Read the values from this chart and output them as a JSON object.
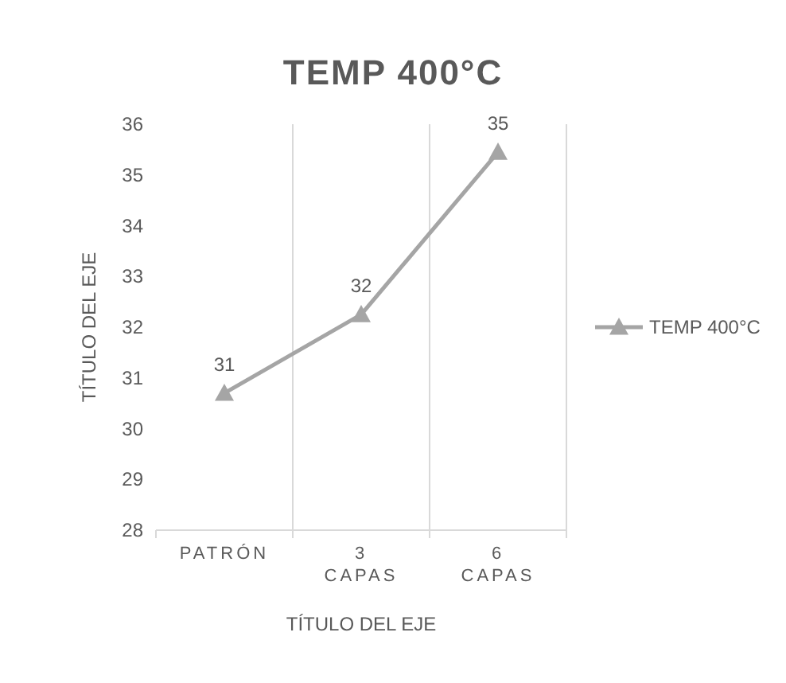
{
  "chart_data": {
    "type": "line",
    "title": "TEMP 400°C",
    "xlabel": "TÍTULO DEL EJE",
    "ylabel": "TÍTULO DEL EJE",
    "categories": [
      "PATRÓN",
      "3 CAPAS",
      "6 CAPAS"
    ],
    "series": [
      {
        "name": "TEMP 400°C",
        "color": "#a5a5a5",
        "values": [
          30.7,
          32.25,
          35.45
        ],
        "value_labels": [
          "31",
          "32",
          "35"
        ]
      }
    ],
    "ylim": [
      28,
      36
    ],
    "yticks": [
      28,
      29,
      30,
      31,
      32,
      33,
      34,
      35,
      36
    ],
    "grid": "x",
    "legend": "right",
    "marker": "triangle",
    "line_style": "solid"
  }
}
